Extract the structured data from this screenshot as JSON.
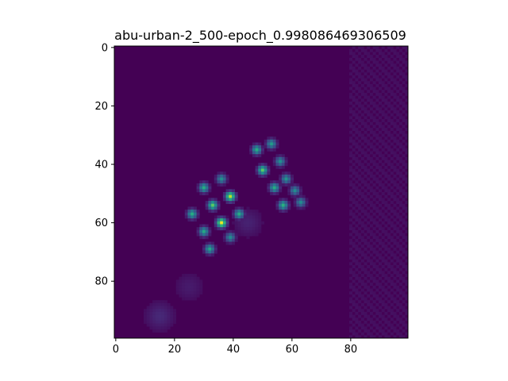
{
  "chart_data": {
    "type": "heatmap",
    "title": "abu-urban-2_500-epoch_0.998086469306509",
    "xlabel": "",
    "ylabel": "",
    "shape": [
      100,
      100
    ],
    "xlim": [
      -0.5,
      99.5
    ],
    "ylim": [
      99.5,
      -0.5
    ],
    "xticks": [
      0,
      20,
      40,
      60,
      80
    ],
    "yticks": [
      0,
      20,
      40,
      60,
      80
    ],
    "xtick_labels": [
      "0",
      "20",
      "40",
      "60",
      "80"
    ],
    "ytick_labels": [
      "0",
      "20",
      "40",
      "60",
      "80"
    ],
    "colormap": "viridis",
    "background_value": 0.03,
    "hotspots": [
      {
        "x": 48,
        "y": 35,
        "value": 0.62
      },
      {
        "x": 53,
        "y": 33,
        "value": 0.55
      },
      {
        "x": 50,
        "y": 42,
        "value": 0.75
      },
      {
        "x": 56,
        "y": 39,
        "value": 0.5
      },
      {
        "x": 54,
        "y": 48,
        "value": 0.62
      },
      {
        "x": 58,
        "y": 45,
        "value": 0.52
      },
      {
        "x": 61,
        "y": 49,
        "value": 0.48
      },
      {
        "x": 57,
        "y": 54,
        "value": 0.64
      },
      {
        "x": 63,
        "y": 53,
        "value": 0.48
      },
      {
        "x": 36,
        "y": 45,
        "value": 0.5
      },
      {
        "x": 30,
        "y": 48,
        "value": 0.62
      },
      {
        "x": 39,
        "y": 51,
        "value": 0.9
      },
      {
        "x": 33,
        "y": 54,
        "value": 0.75
      },
      {
        "x": 26,
        "y": 57,
        "value": 0.62
      },
      {
        "x": 42,
        "y": 57,
        "value": 0.62
      },
      {
        "x": 36,
        "y": 60,
        "value": 0.98
      },
      {
        "x": 30,
        "y": 63,
        "value": 0.6
      },
      {
        "x": 39,
        "y": 65,
        "value": 0.48
      },
      {
        "x": 32,
        "y": 69,
        "value": 0.6
      }
    ],
    "faint_regions": [
      {
        "x": 15,
        "y": 92,
        "value": 0.12
      },
      {
        "x": 25,
        "y": 82,
        "value": 0.08
      },
      {
        "x": 45,
        "y": 60,
        "value": 0.1
      }
    ]
  }
}
